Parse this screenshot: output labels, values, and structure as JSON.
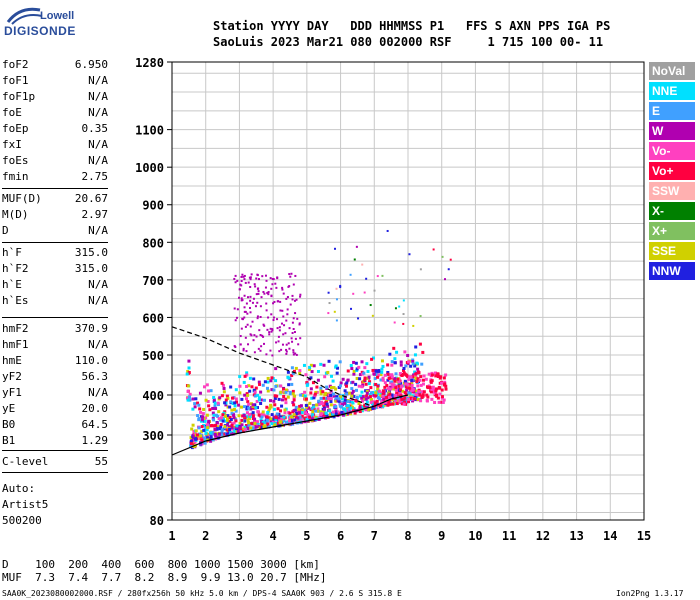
{
  "logo": {
    "line1": "Lowell",
    "line2": "DIGISONDE"
  },
  "header": {
    "line1": "Station YYYY DAY   DDD HHMMSS P1   FFS S AXN PPS IGA PS",
    "line2": "SaoLuis 2023 Mar21 080 002000 RSF     1 715 100 00- 11"
  },
  "params_group1": [
    {
      "name": "foF2",
      "value": "6.950"
    },
    {
      "name": "foF1",
      "value": "N/A"
    },
    {
      "name": "foF1p",
      "value": "N/A"
    },
    {
      "name": "foE",
      "value": "N/A"
    },
    {
      "name": "foEp",
      "value": "0.35"
    },
    {
      "name": "fxI",
      "value": "N/A"
    },
    {
      "name": "foEs",
      "value": "N/A"
    },
    {
      "name": "fmin",
      "value": "2.75"
    }
  ],
  "params_group2": [
    {
      "name": "MUF(D)",
      "value": "20.67"
    },
    {
      "name": "M(D)",
      "value": "2.97"
    },
    {
      "name": "D",
      "value": "N/A"
    }
  ],
  "params_group3": [
    {
      "name": "h`F",
      "value": "315.0"
    },
    {
      "name": "h`F2",
      "value": "315.0"
    },
    {
      "name": "h`E",
      "value": "N/A"
    },
    {
      "name": "h`Es",
      "value": "N/A"
    }
  ],
  "params_group4": [
    {
      "name": "hmF2",
      "value": "370.9"
    },
    {
      "name": "hmF1",
      "value": "N/A"
    },
    {
      "name": "hmE",
      "value": "110.0"
    },
    {
      "name": "yF2",
      "value": "56.3"
    },
    {
      "name": "yF1",
      "value": "N/A"
    },
    {
      "name": "yE",
      "value": "20.0"
    },
    {
      "name": "B0",
      "value": "64.5"
    },
    {
      "name": "B1",
      "value": "1.29"
    }
  ],
  "params_group5": [
    {
      "name": "C-level",
      "value": "55"
    }
  ],
  "notes": [
    "Auto:",
    "Artist5",
    "500200"
  ],
  "legend": [
    {
      "label": "NoVal",
      "color": "#a0a0a0"
    },
    {
      "label": "NNE",
      "color": "#00e0ff"
    },
    {
      "label": "E",
      "color": "#40a0ff"
    },
    {
      "label": "W",
      "color": "#b000b0"
    },
    {
      "label": "Vo-",
      "color": "#ff40c0"
    },
    {
      "label": "Vo+",
      "color": "#ff0040"
    },
    {
      "label": "SSW",
      "color": "#ffb0b0"
    },
    {
      "label": "X-",
      "color": "#008000"
    },
    {
      "label": "X+",
      "color": "#80c060"
    },
    {
      "label": "SSE",
      "color": "#d0d000"
    },
    {
      "label": "NNW",
      "color": "#2020e0"
    }
  ],
  "footer": {
    "d_line": "D    100  200  400  600  800 1000 1500 3000 [km]",
    "muf_line": "MUF  7.3  7.4  7.7  8.2  8.9  9.9 13.0 20.7 [MHz]",
    "file_line": "SAA0K_2023080002000.RSF / 280fx256h 50 kHz 5.0 km / DPS-4 SAA0K 903 / 2.6 S 315.8 E",
    "version": "Ion2Png 1.3.17"
  },
  "chart_data": {
    "type": "scatter",
    "title": "",
    "xlabel": "",
    "ylabel": "",
    "xlim": [
      1,
      15
    ],
    "ylim": [
      80,
      1280
    ],
    "grid": true,
    "x_ticks": [
      1,
      2,
      3,
      4,
      5,
      6,
      7,
      8,
      9,
      10,
      11,
      12,
      13,
      14,
      15
    ],
    "y_ticks": [
      80,
      200,
      300,
      400,
      500,
      600,
      700,
      800,
      900,
      1000,
      1100,
      1280
    ],
    "y_scale_breaks": [
      [
        80,
        200,
        38
      ],
      [
        200,
        500,
        64
      ],
      [
        500,
        1280,
        60
      ]
    ],
    "legend_position": "right",
    "trace_clusters": [
      {
        "label": "o-trace echoes",
        "x_range": [
          1.4,
          8.4
        ],
        "h_range": [
          270,
          520
        ],
        "h_at_x": [
          [
            1.5,
            290
          ],
          [
            2.5,
            320
          ],
          [
            3.5,
            340
          ],
          [
            4.5,
            350
          ],
          [
            5.5,
            365
          ],
          [
            6.5,
            380
          ],
          [
            7.5,
            400
          ],
          [
            8.2,
            410
          ]
        ]
      },
      {
        "label": "x-trace echoes",
        "x_range": [
          7.2,
          9.1
        ],
        "h_range": [
          380,
          460
        ]
      },
      {
        "label": "spread echoes",
        "x_range": [
          2.8,
          4.8
        ],
        "h_range": [
          500,
          720
        ]
      }
    ],
    "profile_curves": [
      {
        "name": "true height profile",
        "color": "#000000",
        "style": "solid",
        "points": [
          [
            1.0,
            250
          ],
          [
            2.0,
            285
          ],
          [
            3.0,
            305
          ],
          [
            4.0,
            320
          ],
          [
            5.0,
            335
          ],
          [
            6.0,
            350
          ],
          [
            7.0,
            372
          ],
          [
            7.5,
            390
          ],
          [
            8.0,
            400
          ]
        ]
      },
      {
        "name": "model profile",
        "color": "#000000",
        "style": "dashed",
        "points": [
          [
            1.0,
            575
          ],
          [
            1.5,
            560
          ],
          [
            2.0,
            545
          ],
          [
            2.5,
            525
          ],
          [
            3.0,
            505
          ],
          [
            3.5,
            490
          ],
          [
            4.0,
            475
          ],
          [
            4.5,
            460
          ],
          [
            5.0,
            445
          ],
          [
            5.5,
            420
          ],
          [
            6.0,
            400
          ],
          [
            6.95,
            372
          ]
        ]
      }
    ]
  }
}
